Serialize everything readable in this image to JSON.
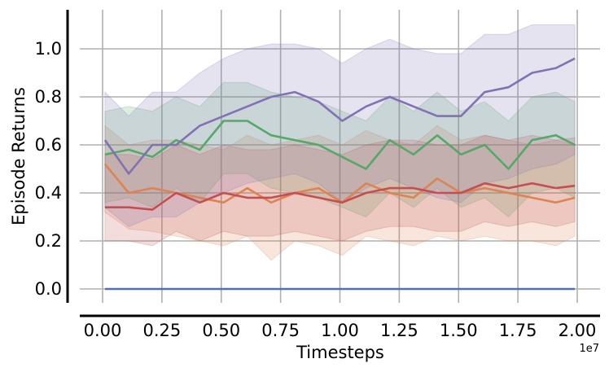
{
  "chart_data": {
    "type": "line",
    "xlabel": "Timesteps",
    "ylabel": "Episode Returns",
    "x_offset_label": "1e7",
    "xlim": [
      0,
      2.0
    ],
    "ylim": [
      0,
      1.1
    ],
    "x_ticks": [
      0,
      0.25,
      0.5,
      0.75,
      1.0,
      1.25,
      1.5,
      1.75,
      2.0
    ],
    "x_tick_labels": [
      "0.00",
      "0.25",
      "0.50",
      "0.75",
      "1.00",
      "1.25",
      "1.50",
      "1.75",
      "2.00"
    ],
    "y_ticks": [
      0,
      0.2,
      0.4,
      0.6,
      0.8,
      1.0
    ],
    "y_tick_labels": [
      "0.0",
      "0.2",
      "0.4",
      "0.6",
      "0.8",
      "1.0"
    ],
    "grid": true,
    "shaded_band": true,
    "x": [
      0.01,
      0.11,
      0.21,
      0.31,
      0.41,
      0.51,
      0.61,
      0.71,
      0.81,
      0.91,
      1.01,
      1.11,
      1.21,
      1.31,
      1.41,
      1.51,
      1.61,
      1.71,
      1.81,
      1.91,
      1.99
    ],
    "series": [
      {
        "color": "#4c72b0",
        "values": [
          0,
          0,
          0,
          0,
          0,
          0,
          0,
          0,
          0,
          0,
          0,
          0,
          0,
          0,
          0,
          0,
          0,
          0,
          0,
          0,
          0
        ],
        "lower": [
          0,
          0,
          0,
          0,
          0,
          0,
          0,
          0,
          0,
          0,
          0,
          0,
          0,
          0,
          0,
          0,
          0,
          0,
          0,
          0,
          0
        ],
        "upper": [
          0,
          0,
          0,
          0,
          0,
          0,
          0,
          0,
          0,
          0,
          0,
          0,
          0,
          0,
          0,
          0,
          0,
          0,
          0,
          0,
          0
        ]
      },
      {
        "color": "#dd8452",
        "values": [
          0.52,
          0.4,
          0.42,
          0.4,
          0.38,
          0.36,
          0.42,
          0.36,
          0.4,
          0.42,
          0.36,
          0.44,
          0.4,
          0.38,
          0.46,
          0.4,
          0.42,
          0.4,
          0.38,
          0.36,
          0.38
        ],
        "lower": [
          0.32,
          0.25,
          0.24,
          0.22,
          0.2,
          0.18,
          0.22,
          0.12,
          0.2,
          0.18,
          0.14,
          0.22,
          0.2,
          0.18,
          0.22,
          0.2,
          0.22,
          0.2,
          0.2,
          0.18,
          0.22
        ],
        "upper": [
          0.68,
          0.6,
          0.62,
          0.62,
          0.6,
          0.58,
          0.64,
          0.6,
          0.62,
          0.64,
          0.6,
          0.66,
          0.62,
          0.6,
          0.68,
          0.62,
          0.64,
          0.62,
          0.6,
          0.62,
          0.6
        ]
      },
      {
        "color": "#55a868",
        "values": [
          0.56,
          0.58,
          0.55,
          0.62,
          0.58,
          0.7,
          0.7,
          0.64,
          0.62,
          0.6,
          0.55,
          0.5,
          0.62,
          0.56,
          0.64,
          0.56,
          0.6,
          0.5,
          0.62,
          0.64,
          0.6
        ],
        "lower": [
          0.36,
          0.38,
          0.34,
          0.42,
          0.36,
          0.48,
          0.48,
          0.42,
          0.4,
          0.38,
          0.34,
          0.3,
          0.4,
          0.34,
          0.42,
          0.34,
          0.38,
          0.3,
          0.4,
          0.42,
          0.38
        ],
        "upper": [
          0.74,
          0.76,
          0.74,
          0.8,
          0.76,
          0.86,
          0.86,
          0.82,
          0.8,
          0.78,
          0.74,
          0.7,
          0.8,
          0.74,
          0.82,
          0.74,
          0.78,
          0.7,
          0.8,
          0.82,
          0.78
        ]
      },
      {
        "color": "#c44e52",
        "values": [
          0.34,
          0.34,
          0.33,
          0.4,
          0.36,
          0.4,
          0.38,
          0.38,
          0.4,
          0.38,
          0.36,
          0.4,
          0.42,
          0.42,
          0.4,
          0.4,
          0.44,
          0.42,
          0.44,
          0.42,
          0.43
        ],
        "lower": [
          0.2,
          0.2,
          0.18,
          0.24,
          0.2,
          0.24,
          0.22,
          0.22,
          0.24,
          0.22,
          0.2,
          0.24,
          0.26,
          0.26,
          0.24,
          0.24,
          0.28,
          0.26,
          0.28,
          0.26,
          0.28
        ],
        "upper": [
          0.56,
          0.56,
          0.54,
          0.6,
          0.56,
          0.6,
          0.58,
          0.58,
          0.6,
          0.58,
          0.56,
          0.6,
          0.62,
          0.62,
          0.6,
          0.6,
          0.64,
          0.62,
          0.64,
          0.62,
          0.63
        ]
      },
      {
        "color": "#8172b3",
        "values": [
          0.62,
          0.48,
          0.6,
          0.6,
          0.68,
          0.72,
          0.76,
          0.8,
          0.82,
          0.78,
          0.7,
          0.76,
          0.8,
          0.76,
          0.72,
          0.72,
          0.82,
          0.84,
          0.9,
          0.92,
          0.96
        ],
        "lower": [
          0.34,
          0.26,
          0.3,
          0.3,
          0.36,
          0.4,
          0.44,
          0.46,
          0.48,
          0.44,
          0.36,
          0.42,
          0.46,
          0.42,
          0.38,
          0.36,
          0.44,
          0.46,
          0.5,
          0.52,
          0.56
        ],
        "upper": [
          0.82,
          0.72,
          0.82,
          0.82,
          0.9,
          0.96,
          1.0,
          1.02,
          1.02,
          1.0,
          0.94,
          1.0,
          1.04,
          1.0,
          0.98,
          0.98,
          1.06,
          1.06,
          1.1,
          1.1,
          1.1
        ]
      }
    ]
  }
}
